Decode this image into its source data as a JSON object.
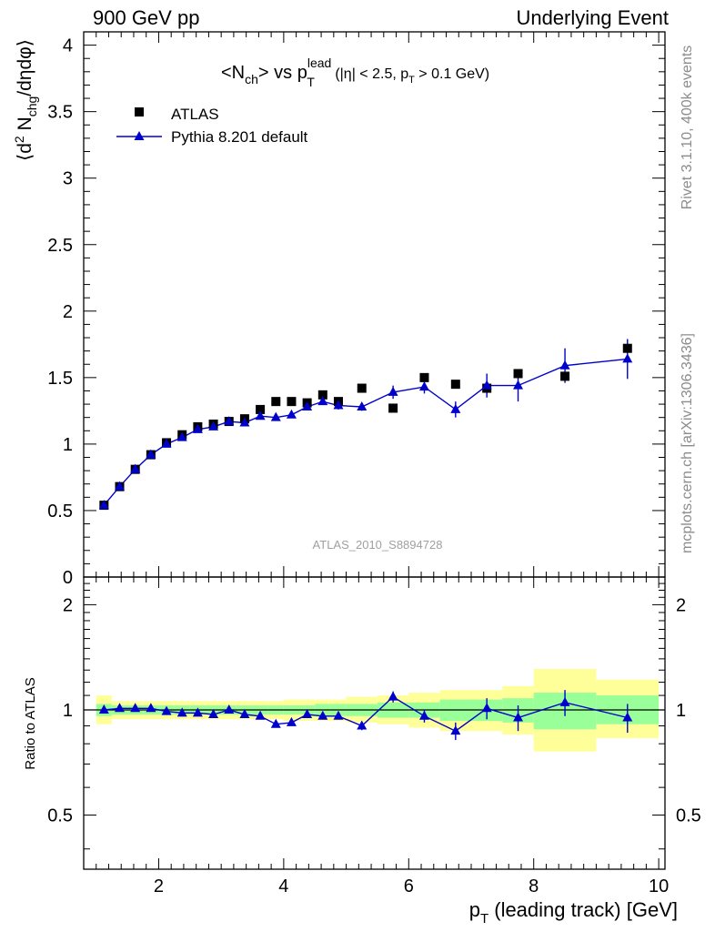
{
  "header": {
    "left": "900 GeV pp",
    "right": "Underlying Event"
  },
  "side_labels": {
    "rivet": "Rivet 3.1.10,  400k events",
    "mcplots": "mcplots.cern.ch [arXiv:1306.3436]"
  },
  "watermark": "ATLAS_2010_S8894728",
  "chart_data": [
    {
      "type": "scatter",
      "title_parts": {
        "open": "<N",
        "sub1": "ch",
        "mid": "> vs p",
        "sup": "lead",
        "sub2": "T",
        "cut_open": "(|η| < 2.5, p",
        "cut_sub": "T",
        "cut_close": " > 0.1 GeV)"
      },
      "ylabel": "⟨d² Nchg/dηdφ⟩",
      "ylabel_parts": {
        "open": "⟨d",
        "sup": "2",
        "mid": " N",
        "sub": "chg",
        "close": "/dηdφ⟩"
      },
      "xlim": [
        0.8,
        10.1
      ],
      "ylim": [
        0,
        4.1
      ],
      "yticks": [
        0,
        0.5,
        1,
        1.5,
        2,
        2.5,
        3,
        3.5,
        4
      ],
      "yticklabels": [
        "0",
        "0.5",
        "1",
        "1.5",
        "2",
        "2.5",
        "3",
        "3.5",
        "4"
      ],
      "legend": {
        "position": "top-left"
      },
      "series": [
        {
          "name": "ATLAS",
          "marker": "square",
          "color": "#000000",
          "x": [
            1.125,
            1.375,
            1.625,
            1.875,
            2.125,
            2.375,
            2.625,
            2.875,
            3.125,
            3.375,
            3.625,
            3.875,
            4.125,
            4.375,
            4.625,
            4.875,
            5.25,
            5.75,
            6.25,
            6.75,
            7.25,
            7.75,
            8.5,
            9.5
          ],
          "y": [
            0.54,
            0.68,
            0.81,
            0.92,
            1.01,
            1.07,
            1.13,
            1.15,
            1.17,
            1.19,
            1.26,
            1.32,
            1.32,
            1.31,
            1.37,
            1.32,
            1.42,
            1.27,
            1.5,
            1.45,
            1.42,
            1.53,
            1.51,
            1.72
          ]
        },
        {
          "name": "Pythia 8.201 default",
          "marker": "triangle",
          "color": "#0000cc",
          "x": [
            1.125,
            1.375,
            1.625,
            1.875,
            2.125,
            2.375,
            2.625,
            2.875,
            3.125,
            3.375,
            3.625,
            3.875,
            4.125,
            4.375,
            4.625,
            4.875,
            5.25,
            5.75,
            6.25,
            6.75,
            7.25,
            7.75,
            8.5,
            9.5
          ],
          "y": [
            0.54,
            0.68,
            0.81,
            0.92,
            1.0,
            1.05,
            1.11,
            1.13,
            1.17,
            1.16,
            1.21,
            1.2,
            1.22,
            1.28,
            1.32,
            1.29,
            1.28,
            1.39,
            1.43,
            1.26,
            1.44,
            1.44,
            1.59,
            1.64
          ],
          "yerr": [
            0.01,
            0.01,
            0.01,
            0.01,
            0.01,
            0.01,
            0.01,
            0.01,
            0.015,
            0.015,
            0.02,
            0.02,
            0.02,
            0.02,
            0.025,
            0.03,
            0.03,
            0.05,
            0.05,
            0.06,
            0.09,
            0.12,
            0.13,
            0.15
          ]
        }
      ]
    },
    {
      "type": "scatter",
      "ylabel": "Ratio to ATLAS",
      "xlabel": "p_T (leading track) [GeV]",
      "xlabel_parts": {
        "p": "p",
        "sub": "T",
        "rest": " (leading track) [GeV]"
      },
      "xlim": [
        0.8,
        10.1
      ],
      "ylim": [
        0.35,
        2.4
      ],
      "xticks": [
        2,
        4,
        6,
        8,
        10
      ],
      "xticklabels": [
        "2",
        "4",
        "6",
        "8",
        "10"
      ],
      "yticks": [
        0.5,
        1,
        2
      ],
      "yticklabels": [
        "0.5",
        "1",
        "2"
      ],
      "reference_line": 1,
      "bands": {
        "edges": [
          1,
          1.25,
          1.5,
          1.75,
          2,
          2.25,
          2.5,
          2.75,
          3,
          3.25,
          3.5,
          3.75,
          4,
          4.25,
          4.5,
          4.75,
          5,
          5.5,
          6,
          6.5,
          7,
          7.5,
          8,
          9,
          10
        ],
        "inner_low": [
          0.96,
          0.97,
          0.97,
          0.97,
          0.97,
          0.97,
          0.97,
          0.97,
          0.97,
          0.97,
          0.97,
          0.97,
          0.97,
          0.97,
          0.96,
          0.96,
          0.96,
          0.95,
          0.95,
          0.93,
          0.93,
          0.92,
          0.88,
          0.91
        ],
        "inner_high": [
          1.04,
          1.03,
          1.03,
          1.03,
          1.03,
          1.03,
          1.03,
          1.03,
          1.03,
          1.03,
          1.03,
          1.03,
          1.03,
          1.03,
          1.04,
          1.04,
          1.04,
          1.05,
          1.05,
          1.07,
          1.07,
          1.08,
          1.12,
          1.1
        ],
        "outer_low": [
          0.91,
          0.94,
          0.94,
          0.94,
          0.94,
          0.94,
          0.94,
          0.94,
          0.94,
          0.94,
          0.94,
          0.94,
          0.93,
          0.93,
          0.93,
          0.93,
          0.92,
          0.91,
          0.89,
          0.87,
          0.87,
          0.85,
          0.76,
          0.83
        ],
        "outer_high": [
          1.1,
          1.06,
          1.06,
          1.06,
          1.06,
          1.06,
          1.06,
          1.06,
          1.06,
          1.06,
          1.06,
          1.06,
          1.07,
          1.07,
          1.07,
          1.07,
          1.09,
          1.1,
          1.12,
          1.14,
          1.14,
          1.17,
          1.31,
          1.22
        ],
        "inner_color": "#99ff99",
        "outer_color": "#ffff99"
      },
      "series": [
        {
          "name": "Pythia 8.201 default",
          "marker": "triangle",
          "color": "#0000cc",
          "x": [
            1.125,
            1.375,
            1.625,
            1.875,
            2.125,
            2.375,
            2.625,
            2.875,
            3.125,
            3.375,
            3.625,
            3.875,
            4.125,
            4.375,
            4.625,
            4.875,
            5.25,
            5.75,
            6.25,
            6.75,
            7.25,
            7.75,
            8.5,
            9.5
          ],
          "y": [
            1.0,
            1.01,
            1.01,
            1.01,
            0.99,
            0.98,
            0.98,
            0.97,
            1.0,
            0.97,
            0.96,
            0.91,
            0.92,
            0.97,
            0.96,
            0.96,
            0.9,
            1.09,
            0.96,
            0.87,
            1.01,
            0.95,
            1.05,
            0.95
          ],
          "yerr": [
            0.01,
            0.01,
            0.01,
            0.01,
            0.01,
            0.01,
            0.01,
            0.01,
            0.01,
            0.01,
            0.01,
            0.015,
            0.015,
            0.015,
            0.02,
            0.02,
            0.025,
            0.04,
            0.04,
            0.05,
            0.07,
            0.08,
            0.09,
            0.09
          ]
        }
      ]
    }
  ]
}
